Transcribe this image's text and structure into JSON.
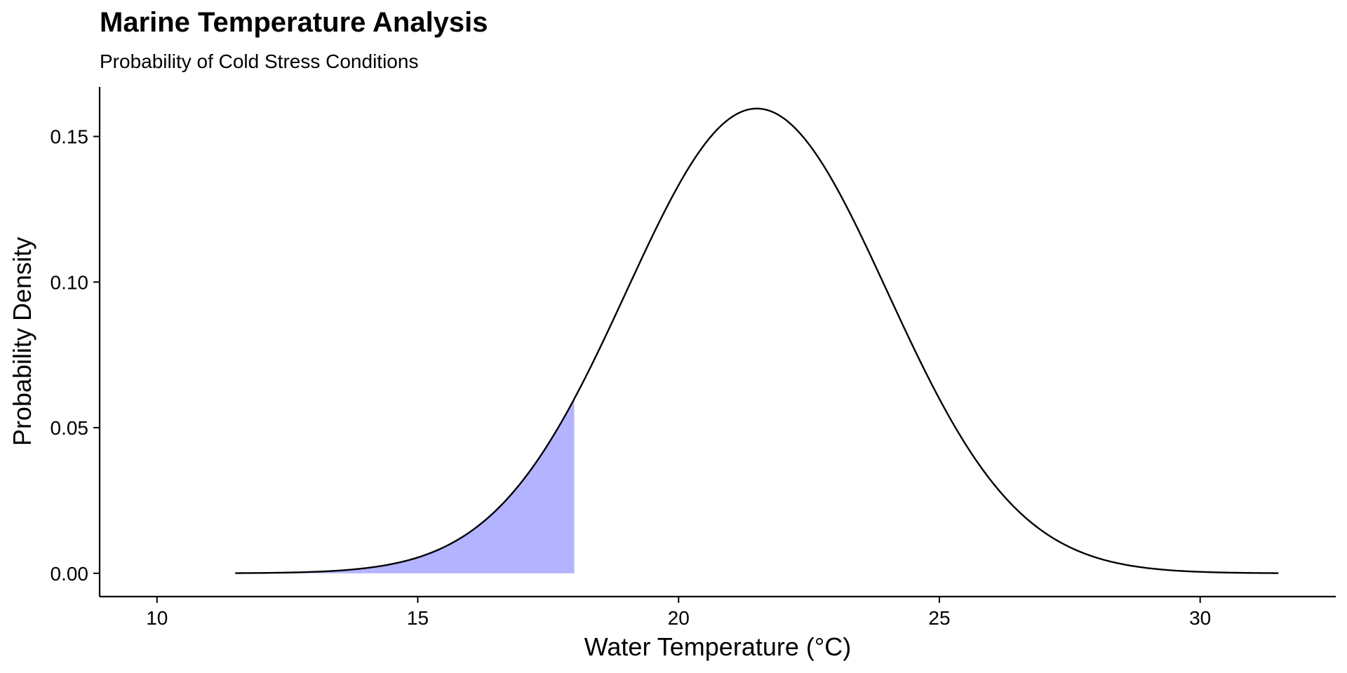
{
  "chart_data": {
    "type": "area",
    "title": "Marine Temperature Analysis",
    "subtitle": "Probability of Cold Stress Conditions",
    "xlabel": "Water Temperature (°C)",
    "ylabel": "Probability Density",
    "xlim": [
      8.9,
      32.6
    ],
    "ylim": [
      -0.008,
      0.167
    ],
    "x_ticks": [
      10,
      15,
      20,
      25,
      30
    ],
    "y_ticks": [
      0.0,
      0.05,
      0.1,
      0.15
    ],
    "x_tick_labels": [
      "10",
      "15",
      "20",
      "25",
      "30"
    ],
    "y_tick_labels": [
      "0.00",
      "0.05",
      "0.10",
      "0.15"
    ],
    "grid": false,
    "legend": "none",
    "series": [
      {
        "type": "line",
        "distribution": "normal",
        "mean": 21.5,
        "sd": 2.5,
        "x_range": [
          11.5,
          31.5
        ],
        "peak_density": 0.16,
        "color": "#000000"
      }
    ],
    "shaded_region": {
      "x_range": [
        11.5,
        18
      ],
      "color": "#b3b3ff",
      "threshold": 18
    }
  }
}
